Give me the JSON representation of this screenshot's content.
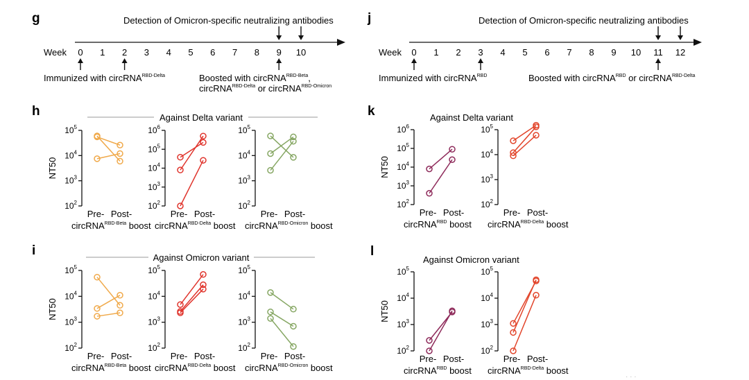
{
  "panels": {
    "g": {
      "letter": "g",
      "title": "Detection of Omicron-specific neutralizing antibodies",
      "week_label": "Week",
      "ticks": [
        "0",
        "1",
        "2",
        "3",
        "4",
        "5",
        "6",
        "7",
        "8",
        "9",
        "10"
      ],
      "top_arrow_weeks": [
        9,
        10
      ],
      "bottom_arrow_weeks": [
        0,
        2,
        9
      ]
    },
    "j": {
      "letter": "j",
      "title": "Detection of Omicron-specific neutralizing antibodies",
      "week_label": "Week",
      "ticks": [
        "0",
        "1",
        "2",
        "3",
        "4",
        "5",
        "6",
        "7",
        "8",
        "9",
        "10",
        "11",
        "12"
      ],
      "top_arrow_weeks": [
        11,
        12
      ],
      "bottom_arrow_weeks": [
        0,
        3,
        11
      ]
    },
    "h": {
      "letter": "h",
      "header": "Against Delta variant"
    },
    "i": {
      "letter": "i",
      "header": "Against Omicron variant"
    },
    "k": {
      "letter": "k",
      "header": "Against Delta variant"
    },
    "l": {
      "letter": "l",
      "header": "Against Omicron variant"
    }
  },
  "annotations": {
    "g_immunized": {
      "base": "Immunized with circRNA",
      "sup": "RBD-Delta"
    },
    "g_boosted_line1": {
      "base": "Boosted with circRNA",
      "sup": "RBD-Beta",
      "tail": ","
    },
    "g_boosted_line2": {
      "a": "circRNA",
      "a_sup": "RBD-Delta",
      "mid": " or circRNA",
      "b_sup": "RBD-Omicron"
    },
    "j_immunized": {
      "base": "Immunized with circRNA",
      "sup": "RBD"
    },
    "j_boosted": {
      "a": "Boosted with circRNA",
      "a_sup": "RBD",
      "mid": " or circRNA",
      "b_sup": "RBD-Delta"
    }
  },
  "y_label": "NT50",
  "chart_data": [
    {
      "id": "h1",
      "type": "line",
      "panel": "h",
      "color": "#f0a94a",
      "ylim_log10": [
        2,
        5
      ],
      "ticks_pow": [
        "2",
        "3",
        "4",
        "5"
      ],
      "xlabels": [
        "Pre-",
        "Post-"
      ],
      "group": {
        "base": "circRNA",
        "sup": "RBD-Beta",
        "tail": " boost"
      },
      "series": [
        {
          "pre": 60000,
          "post": 6000
        },
        {
          "pre": 55000,
          "post": 26000
        },
        {
          "pre": 7500,
          "post": 12000
        }
      ]
    },
    {
      "id": "h2",
      "type": "line",
      "panel": "h",
      "color": "#e0342c",
      "ylim_log10": [
        2,
        6
      ],
      "ticks_pow": [
        "2",
        "3",
        "4",
        "5",
        "6"
      ],
      "xlabels": [
        "Pre-",
        "Post-"
      ],
      "group": {
        "base": "circRNA",
        "sup": "RBD-Delta",
        "tail": " boost"
      },
      "series": [
        {
          "pre": 38000,
          "post": 230000
        },
        {
          "pre": 8000,
          "post": 500000
        },
        {
          "pre": 100,
          "post": 26000
        }
      ]
    },
    {
      "id": "h3",
      "type": "line",
      "panel": "h",
      "color": "#85a662",
      "ylim_log10": [
        2,
        5
      ],
      "ticks_pow": [
        "2",
        "3",
        "4",
        "5"
      ],
      "xlabels": [
        "Pre-",
        "Post-"
      ],
      "group": {
        "base": "circRNA",
        "sup": "RBD-Omicron",
        "tail": " boost"
      },
      "series": [
        {
          "pre": 60000,
          "post": 8500
        },
        {
          "pre": 12000,
          "post": 55000
        },
        {
          "pre": 2600,
          "post": 37000
        }
      ]
    },
    {
      "id": "i1",
      "type": "line",
      "panel": "i",
      "color": "#f0a94a",
      "ylim_log10": [
        2,
        5
      ],
      "ticks_pow": [
        "2",
        "3",
        "4",
        "5"
      ],
      "xlabels": [
        "Pre-",
        "Post-"
      ],
      "group": {
        "base": "circRNA",
        "sup": "RBD-Beta",
        "tail": " boost"
      },
      "series": [
        {
          "pre": 55000,
          "post": 4500
        },
        {
          "pre": 3400,
          "post": 11000
        },
        {
          "pre": 1700,
          "post": 2300
        }
      ]
    },
    {
      "id": "i2",
      "type": "line",
      "panel": "i",
      "color": "#e0342c",
      "ylim_log10": [
        2,
        5
      ],
      "ticks_pow": [
        "2",
        "3",
        "4",
        "5"
      ],
      "xlabels": [
        "Pre-",
        "Post-"
      ],
      "group": {
        "base": "circRNA",
        "sup": "RBD-Delta",
        "tail": " boost"
      },
      "series": [
        {
          "pre": 4800,
          "post": 70000
        },
        {
          "pre": 2600,
          "post": 28000
        },
        {
          "pre": 2300,
          "post": 19000
        }
      ]
    },
    {
      "id": "i3",
      "type": "line",
      "panel": "i",
      "color": "#85a662",
      "ylim_log10": [
        2,
        5
      ],
      "ticks_pow": [
        "2",
        "3",
        "4",
        "5"
      ],
      "xlabels": [
        "Pre-",
        "Post-"
      ],
      "group": {
        "base": "circRNA",
        "sup": "RBD-Omicron",
        "tail": " boost"
      },
      "series": [
        {
          "pre": 14000,
          "post": 3200
        },
        {
          "pre": 2500,
          "post": 700
        },
        {
          "pre": 1400,
          "post": 115
        }
      ]
    },
    {
      "id": "k1",
      "type": "line",
      "panel": "k",
      "color": "#8e2a5a",
      "ylim_log10": [
        2,
        6
      ],
      "ticks_pow": [
        "2",
        "3",
        "4",
        "5",
        "6"
      ],
      "xlabels": [
        "Pre-",
        "Post-"
      ],
      "group": {
        "base": "circRNA",
        "sup": "RBD",
        "tail": " boost"
      },
      "series": [
        {
          "pre": 8000,
          "post": 90000
        },
        {
          "pre": 400,
          "post": 25000
        }
      ]
    },
    {
      "id": "k2",
      "type": "line",
      "panel": "k",
      "color": "#e2452b",
      "ylim_log10": [
        2,
        5
      ],
      "ticks_pow": [
        "2",
        "3",
        "4",
        "5"
      ],
      "xlabels": [
        "Pre-",
        "Post-"
      ],
      "group": {
        "base": "circRNA",
        "sup": "RBD-Delta",
        "tail": " boost"
      },
      "series": [
        {
          "pre": 36000,
          "post": 150000
        },
        {
          "pre": 12000,
          "post": 130000
        },
        {
          "pre": 9000,
          "post": 60000
        }
      ]
    },
    {
      "id": "l1",
      "type": "line",
      "panel": "l",
      "color": "#8e2a5a",
      "ylim_log10": [
        2,
        5
      ],
      "ticks_pow": [
        "2",
        "3",
        "4",
        "5"
      ],
      "xlabels": [
        "Pre-",
        "Post-"
      ],
      "group": {
        "base": "circRNA",
        "sup": "RBD",
        "tail": " boost"
      },
      "series": [
        {
          "pre": 250,
          "post": 3000
        },
        {
          "pre": 100,
          "post": 3300
        }
      ]
    },
    {
      "id": "l2",
      "type": "line",
      "panel": "l",
      "color": "#e2452b",
      "ylim_log10": [
        2,
        5
      ],
      "ticks_pow": [
        "2",
        "3",
        "4",
        "5"
      ],
      "xlabels": [
        "Pre-",
        "Post-"
      ],
      "group": {
        "base": "circRNA",
        "sup": "RBD-Delta",
        "tail": " boost"
      },
      "series": [
        {
          "pre": 1100,
          "post": 45000
        },
        {
          "pre": 500,
          "post": 50000
        },
        {
          "pre": 100,
          "post": 13000
        }
      ]
    }
  ]
}
